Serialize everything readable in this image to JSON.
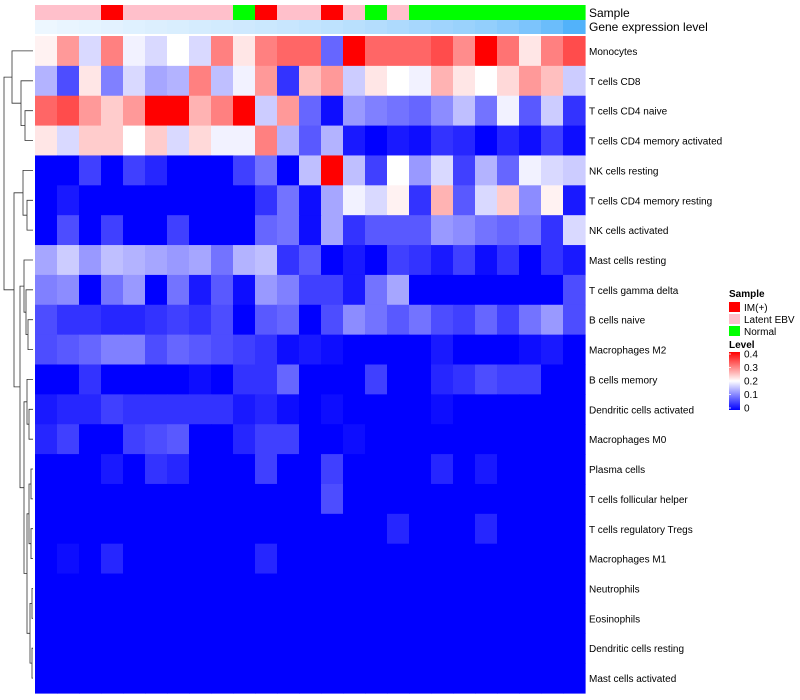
{
  "chart_data": {
    "type": "heatmap",
    "title": "",
    "annotation_tracks": [
      {
        "name": "Sample",
        "values": [
          "Latent EBV",
          "Latent EBV",
          "Latent EBV",
          "IM(+)",
          "Latent EBV",
          "Latent EBV",
          "Latent EBV",
          "Latent EBV",
          "Latent EBV",
          "Normal",
          "IM(+)",
          "Latent EBV",
          "Latent EBV",
          "IM(+)",
          "Latent EBV",
          "Normal",
          "Latent EBV",
          "Normal",
          "Normal",
          "Normal",
          "Normal",
          "Normal",
          "Normal",
          "Normal",
          "Normal"
        ]
      },
      {
        "name": "Gene expression level",
        "values": [
          0.02,
          0.04,
          0.06,
          0.08,
          0.1,
          0.12,
          0.14,
          0.16,
          0.18,
          0.2,
          0.22,
          0.24,
          0.27,
          0.3,
          0.33,
          0.36,
          0.4,
          0.44,
          0.48,
          0.52,
          0.56,
          0.62,
          0.7,
          0.8,
          0.95
        ]
      }
    ],
    "rows": [
      "Monocytes",
      "T cells CD8",
      "T cells CD4 naive",
      "T cells CD4 memory activated",
      "NK cells resting",
      "T cells CD4 memory resting",
      "NK cells activated",
      "Mast cells resting",
      "T cells gamma delta",
      "B cells naive",
      "Macrophages M2",
      "B cells memory",
      "Dendritic cells activated",
      "Macrophages M0",
      "Plasma cells",
      "T cells follicular helper",
      "T cells regulatory  Tregs",
      "Macrophages M1",
      "Neutrophils",
      "Eosinophils",
      "Dendritic cells resting",
      "Mast cells activated"
    ],
    "values": [
      [
        0.21,
        0.28,
        0.17,
        0.3,
        0.19,
        0.17,
        0.2,
        0.17,
        0.3,
        0.22,
        0.3,
        0.32,
        0.32,
        0.08,
        0.4,
        0.32,
        0.32,
        0.32,
        0.34,
        0.29,
        0.4,
        0.31,
        0.22,
        0.3,
        0.34
      ],
      [
        0.14,
        0.06,
        0.22,
        0.1,
        0.17,
        0.13,
        0.14,
        0.3,
        0.15,
        0.19,
        0.28,
        0.04,
        0.25,
        0.28,
        0.16,
        0.22,
        0.2,
        0.19,
        0.26,
        0.22,
        0.2,
        0.23,
        0.28,
        0.25,
        0.16
      ],
      [
        0.32,
        0.34,
        0.28,
        0.24,
        0.28,
        0.4,
        0.4,
        0.26,
        0.3,
        0.4,
        0.16,
        0.28,
        0.08,
        0.01,
        0.12,
        0.1,
        0.09,
        0.08,
        0.11,
        0.15,
        0.09,
        0.19,
        0.07,
        0.16,
        0.04
      ],
      [
        0.22,
        0.17,
        0.24,
        0.24,
        0.2,
        0.24,
        0.17,
        0.23,
        0.19,
        0.19,
        0.3,
        0.14,
        0.07,
        0.14,
        0.02,
        0.0,
        0.02,
        0.01,
        0.04,
        0.03,
        0.0,
        0.03,
        0.01,
        0.05,
        0.01
      ],
      [
        0.0,
        0.0,
        0.05,
        0.0,
        0.05,
        0.03,
        0.0,
        0.0,
        0.0,
        0.05,
        0.09,
        0.0,
        0.15,
        0.4,
        0.15,
        0.05,
        0.2,
        0.12,
        0.17,
        0.05,
        0.14,
        0.08,
        0.19,
        0.17,
        0.16
      ],
      [
        0.0,
        0.02,
        0.0,
        0.0,
        0.0,
        0.0,
        0.0,
        0.0,
        0.0,
        0.0,
        0.04,
        0.09,
        0.01,
        0.13,
        0.19,
        0.17,
        0.21,
        0.04,
        0.26,
        0.07,
        0.17,
        0.24,
        0.11,
        0.21,
        0.02
      ],
      [
        0.0,
        0.06,
        0.0,
        0.05,
        0.0,
        0.0,
        0.05,
        0.0,
        0.0,
        0.0,
        0.08,
        0.09,
        0.01,
        0.13,
        0.04,
        0.07,
        0.07,
        0.07,
        0.12,
        0.11,
        0.09,
        0.08,
        0.09,
        0.04,
        0.17
      ],
      [
        0.13,
        0.16,
        0.12,
        0.15,
        0.14,
        0.13,
        0.12,
        0.13,
        0.09,
        0.14,
        0.15,
        0.04,
        0.07,
        0.0,
        0.02,
        0.0,
        0.05,
        0.04,
        0.02,
        0.05,
        0.01,
        0.04,
        0.0,
        0.04,
        0.02
      ],
      [
        0.1,
        0.11,
        0.0,
        0.09,
        0.12,
        0.0,
        0.09,
        0.02,
        0.07,
        0.01,
        0.12,
        0.1,
        0.05,
        0.05,
        0.02,
        0.09,
        0.13,
        0.0,
        0.0,
        0.0,
        0.0,
        0.0,
        0.0,
        0.0,
        0.06
      ],
      [
        0.06,
        0.04,
        0.04,
        0.03,
        0.03,
        0.04,
        0.05,
        0.04,
        0.06,
        0.0,
        0.07,
        0.08,
        0.0,
        0.06,
        0.11,
        0.09,
        0.07,
        0.09,
        0.06,
        0.05,
        0.08,
        0.05,
        0.09,
        0.12,
        0.06
      ],
      [
        0.06,
        0.07,
        0.08,
        0.1,
        0.1,
        0.06,
        0.08,
        0.07,
        0.06,
        0.05,
        0.04,
        0.01,
        0.02,
        0.01,
        0.0,
        0.0,
        0.0,
        0.0,
        0.02,
        0.0,
        0.0,
        0.0,
        0.01,
        0.02,
        0.0
      ],
      [
        0.0,
        0.0,
        0.04,
        0.0,
        0.0,
        0.0,
        0.0,
        0.01,
        0.0,
        0.04,
        0.04,
        0.08,
        0.0,
        0.0,
        0.0,
        0.05,
        0.0,
        0.0,
        0.03,
        0.04,
        0.06,
        0.05,
        0.05,
        0.0,
        0.0
      ],
      [
        0.02,
        0.03,
        0.03,
        0.05,
        0.04,
        0.04,
        0.04,
        0.04,
        0.04,
        0.02,
        0.03,
        0.01,
        0.0,
        0.01,
        0.0,
        0.0,
        0.0,
        0.0,
        0.01,
        0.0,
        0.0,
        0.0,
        0.0,
        0.0,
        0.0
      ],
      [
        0.03,
        0.05,
        0.0,
        0.0,
        0.05,
        0.06,
        0.07,
        0.0,
        0.0,
        0.03,
        0.05,
        0.05,
        0.0,
        0.0,
        0.01,
        0.0,
        0.0,
        0.0,
        0.0,
        0.0,
        0.0,
        0.0,
        0.0,
        0.0,
        0.0
      ],
      [
        0.0,
        0.0,
        0.0,
        0.02,
        0.0,
        0.04,
        0.03,
        0.0,
        0.0,
        0.0,
        0.05,
        0.0,
        0.0,
        0.05,
        0.0,
        0.0,
        0.0,
        0.0,
        0.03,
        0.0,
        0.02,
        0.0,
        0.0,
        0.0,
        0.0
      ],
      [
        0.0,
        0.0,
        0.0,
        0.0,
        0.0,
        0.0,
        0.0,
        0.0,
        0.0,
        0.0,
        0.0,
        0.0,
        0.0,
        0.06,
        0.0,
        0.0,
        0.0,
        0.0,
        0.0,
        0.0,
        0.0,
        0.0,
        0.0,
        0.0,
        0.0
      ],
      [
        0.0,
        0.0,
        0.0,
        0.0,
        0.0,
        0.0,
        0.0,
        0.0,
        0.0,
        0.0,
        0.0,
        0.0,
        0.0,
        0.0,
        0.0,
        0.0,
        0.03,
        0.0,
        0.0,
        0.0,
        0.03,
        0.0,
        0.0,
        0.0,
        0.0
      ],
      [
        0.0,
        0.01,
        0.0,
        0.03,
        0.0,
        0.0,
        0.0,
        0.0,
        0.0,
        0.0,
        0.03,
        0.0,
        0.0,
        0.0,
        0.0,
        0.0,
        0.0,
        0.0,
        0.0,
        0.0,
        0.0,
        0.0,
        0.0,
        0.0,
        0.0
      ],
      [
        0.0,
        0.0,
        0.0,
        0.0,
        0.0,
        0.0,
        0.0,
        0.0,
        0.0,
        0.0,
        0.0,
        0.0,
        0.0,
        0.0,
        0.0,
        0.0,
        0.0,
        0.0,
        0.0,
        0.0,
        0.0,
        0.0,
        0.0,
        0.0,
        0.0
      ],
      [
        0.0,
        0.0,
        0.0,
        0.0,
        0.0,
        0.0,
        0.0,
        0.0,
        0.0,
        0.0,
        0.0,
        0.0,
        0.0,
        0.0,
        0.0,
        0.0,
        0.0,
        0.0,
        0.0,
        0.0,
        0.0,
        0.0,
        0.0,
        0.0,
        0.0
      ],
      [
        0.0,
        0.0,
        0.0,
        0.0,
        0.0,
        0.0,
        0.0,
        0.0,
        0.0,
        0.0,
        0.0,
        0.0,
        0.0,
        0.0,
        0.0,
        0.0,
        0.0,
        0.0,
        0.0,
        0.0,
        0.0,
        0.0,
        0.0,
        0.0,
        0.0
      ],
      [
        0.0,
        0.0,
        0.0,
        0.0,
        0.0,
        0.0,
        0.0,
        0.0,
        0.0,
        0.0,
        0.0,
        0.0,
        0.0,
        0.0,
        0.0,
        0.0,
        0.0,
        0.0,
        0.0,
        0.0,
        0.0,
        0.0,
        0.0,
        0.0,
        0.0
      ]
    ],
    "color_scale": {
      "min": 0,
      "mid": 0.2,
      "max": 0.4,
      "low": "#0000ff",
      "mid_color": "#ffffff",
      "high": "#ff0000"
    },
    "legend": {
      "sample_title": "Sample",
      "sample_entries": [
        {
          "label": "IM(+)",
          "color": "#ff0000"
        },
        {
          "label": "Latent EBV",
          "color": "#ffc0cb"
        },
        {
          "label": "Normal",
          "color": "#00ff00"
        }
      ],
      "level_title": "Level",
      "level_ticks": [
        "0.4",
        "0.3",
        "0.2",
        "0.1",
        "0"
      ],
      "placement": "right"
    },
    "gene_expression_colors": {
      "low": "#f0f8ff",
      "high": "#4aaefa"
    },
    "row_dendrogram": true
  }
}
